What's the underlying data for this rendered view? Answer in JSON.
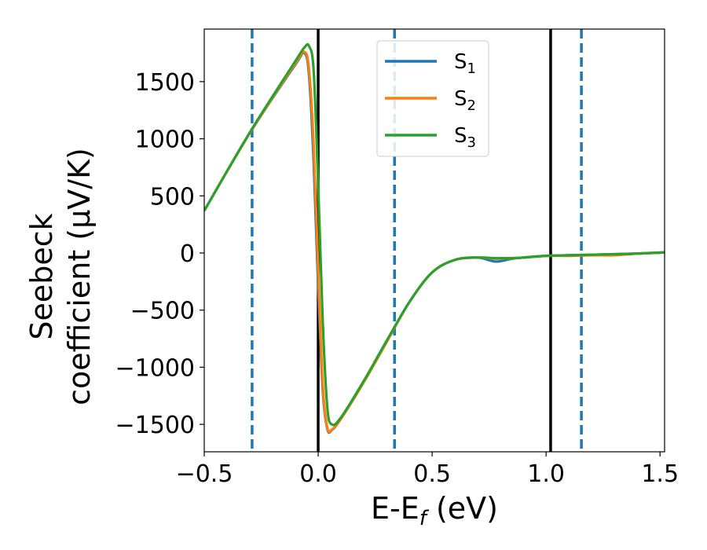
{
  "chart_data": {
    "type": "line",
    "xlabel": "E-E",
    "xlabel_sub": "f",
    "xlabel_unit": " (eV)",
    "ylabel_line1": "Seebeck",
    "ylabel_line2": "coefficient  (μV/K)",
    "xlim": [
      -0.5,
      1.52
    ],
    "ylim": [
      -1740,
      1960
    ],
    "xticks": [
      -0.5,
      0.0,
      0.5,
      1.0,
      1.5
    ],
    "xtick_labels": [
      "−0.5",
      "0.0",
      "0.5",
      "1.0",
      "1.5"
    ],
    "yticks": [
      -1500,
      -1000,
      -500,
      0,
      500,
      1000,
      1500
    ],
    "ytick_labels": [
      "−1500",
      "−1000",
      "−500",
      "0",
      "500",
      "1000",
      "1500"
    ],
    "grid": false,
    "legend_position": "top-center",
    "vlines_dashed": [
      -0.29,
      0.335,
      1.155
    ],
    "vlines_solid": [
      0.0,
      1.02
    ],
    "series": [
      {
        "name": "S",
        "sub": "1",
        "color": "#1f77b4",
        "x": [
          -0.5,
          -0.3,
          -0.1,
          -0.06,
          -0.04,
          -0.02,
          0.0,
          0.02,
          0.04,
          0.06,
          0.1,
          0.2,
          0.3,
          0.4,
          0.5,
          0.6,
          0.7,
          0.78,
          0.85,
          0.9,
          1.0,
          1.1,
          1.2,
          1.3,
          1.4,
          1.52
        ],
        "y": [
          370,
          1050,
          1650,
          1750,
          1550,
          800,
          -300,
          -1200,
          -1540,
          -1550,
          -1450,
          -1130,
          -780,
          -430,
          -170,
          -60,
          -40,
          -75,
          -50,
          -40,
          -25,
          -20,
          -15,
          -10,
          -5,
          5
        ]
      },
      {
        "name": "S",
        "sub": "2",
        "color": "#ff7f0e",
        "x": [
          -0.5,
          -0.3,
          -0.1,
          -0.06,
          -0.04,
          -0.02,
          0.0,
          0.02,
          0.04,
          0.06,
          0.1,
          0.2,
          0.3,
          0.4,
          0.5,
          0.6,
          0.7,
          0.78,
          0.85,
          0.9,
          1.0,
          1.1,
          1.2,
          1.3,
          1.4,
          1.52
        ],
        "y": [
          370,
          1050,
          1660,
          1760,
          1600,
          950,
          -150,
          -1150,
          -1530,
          -1545,
          -1450,
          -1130,
          -780,
          -430,
          -170,
          -60,
          -40,
          -50,
          -45,
          -40,
          -25,
          -25,
          -20,
          -20,
          -5,
          5
        ]
      },
      {
        "name": "S",
        "sub": "3",
        "color": "#2ca02c",
        "x": [
          -0.5,
          -0.3,
          -0.1,
          -0.06,
          -0.04,
          -0.02,
          0.0,
          0.02,
          0.04,
          0.06,
          0.1,
          0.2,
          0.3,
          0.4,
          0.5,
          0.6,
          0.7,
          0.78,
          0.85,
          0.9,
          1.0,
          1.1,
          1.2,
          1.3,
          1.4,
          1.52
        ],
        "y": [
          370,
          1055,
          1680,
          1800,
          1810,
          1600,
          600,
          -600,
          -1350,
          -1500,
          -1440,
          -1120,
          -770,
          -430,
          -170,
          -60,
          -40,
          -45,
          -45,
          -40,
          -25,
          -20,
          -15,
          -10,
          -5,
          5
        ]
      }
    ]
  }
}
